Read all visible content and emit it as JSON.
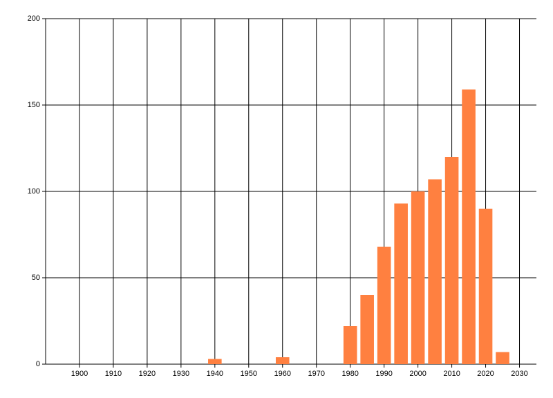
{
  "chart_data": {
    "type": "bar",
    "x": [
      1940,
      1960,
      1980,
      1985,
      1990,
      1995,
      2000,
      2005,
      2010,
      2015,
      2020,
      2025
    ],
    "values": [
      3,
      4,
      22,
      40,
      68,
      93,
      100,
      107,
      120,
      159,
      90,
      7
    ],
    "color": "#ff8040",
    "xlim": [
      1890,
      2035
    ],
    "xticks": [
      1900,
      1910,
      1920,
      1930,
      1940,
      1950,
      1960,
      1970,
      1980,
      1990,
      2000,
      2010,
      2020,
      2030
    ],
    "ylim": [
      0,
      200
    ],
    "yticks": [
      0,
      50,
      100,
      150,
      200
    ],
    "grid": true
  }
}
